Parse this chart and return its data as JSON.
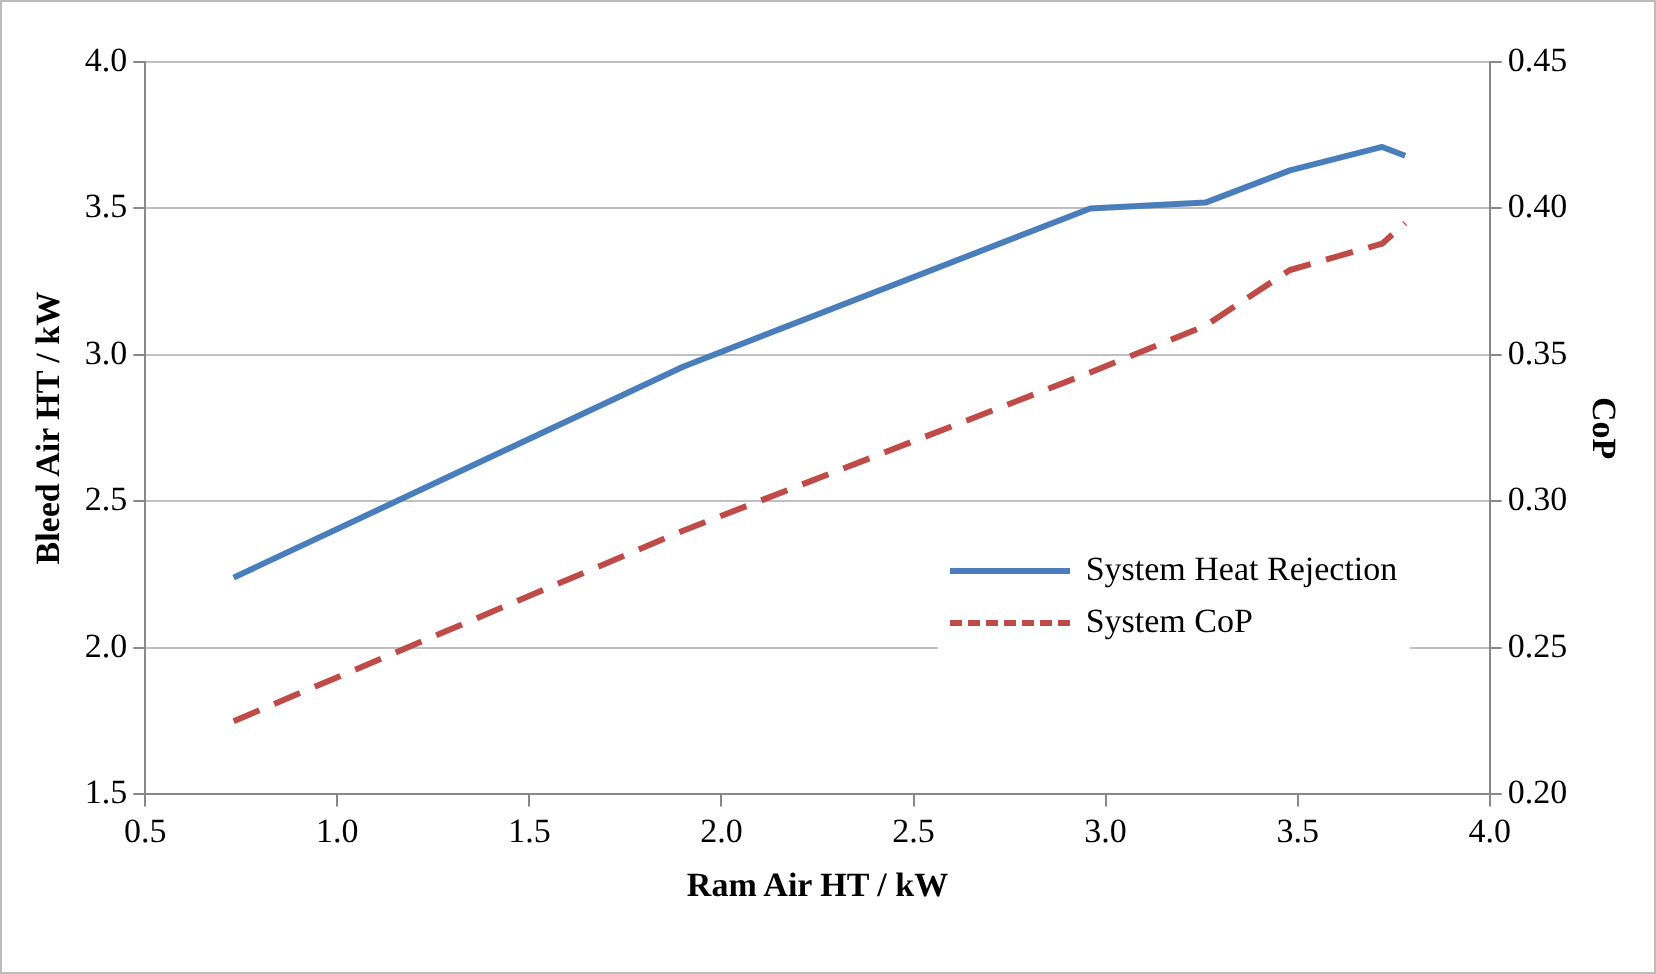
{
  "chart_data": {
    "type": "line",
    "xlabel": "Ram Air HT / kW",
    "ylabel": "Bleed Air HT / kW",
    "y2label": "CoP",
    "xlim": [
      0.5,
      4.0
    ],
    "xticks": [
      {
        "value": 0.5,
        "label": "0.5"
      },
      {
        "value": 1,
        "label": "1.0"
      },
      {
        "value": 1.5,
        "label": "1.5"
      },
      {
        "value": 2,
        "label": "2.0"
      },
      {
        "value": 2.5,
        "label": "2.5"
      },
      {
        "value": 3,
        "label": "3.0"
      },
      {
        "value": 3.5,
        "label": "3.5"
      },
      {
        "value": 4,
        "label": "4.0"
      }
    ],
    "ylim": [
      1.5,
      4.0
    ],
    "yticks": [
      {
        "value": 1.5,
        "label": "1.5"
      },
      {
        "value": 2,
        "label": "2.0"
      },
      {
        "value": 2.5,
        "label": "2.5"
      },
      {
        "value": 3,
        "label": "3.0"
      },
      {
        "value": 3.5,
        "label": "3.5"
      },
      {
        "value": 4,
        "label": "4.0"
      }
    ],
    "y2lim": [
      0.2,
      0.45
    ],
    "y2ticks": [
      {
        "value": 0.2,
        "label": "0.20"
      },
      {
        "value": 0.25,
        "label": "0.25"
      },
      {
        "value": 0.3,
        "label": "0.30"
      },
      {
        "value": 0.35,
        "label": "0.35"
      },
      {
        "value": 0.4,
        "label": "0.40"
      },
      {
        "value": 0.45,
        "label": "0.45"
      }
    ],
    "grid": "y",
    "legend": "right",
    "marker": "none",
    "series": [
      {
        "name": "System Heat Rejection",
        "color": "#4a7ebb",
        "line_style": "solid",
        "x": [
          0.73,
          1.9,
          2.96,
          3.26,
          3.48,
          3.72,
          3.78
        ],
        "values": [
          2.24,
          2.96,
          3.5,
          3.52,
          3.63,
          3.71,
          3.68
        ]
      },
      {
        "name": "System CoP",
        "color": "#be4b48",
        "line_style": "dashed",
        "axis": "y2",
        "x": [
          0.73,
          1.9,
          2.96,
          3.26,
          3.48,
          3.72,
          3.78
        ],
        "values": [
          0.225,
          0.29,
          0.344,
          0.36,
          0.379,
          0.388,
          0.395
        ]
      }
    ]
  }
}
